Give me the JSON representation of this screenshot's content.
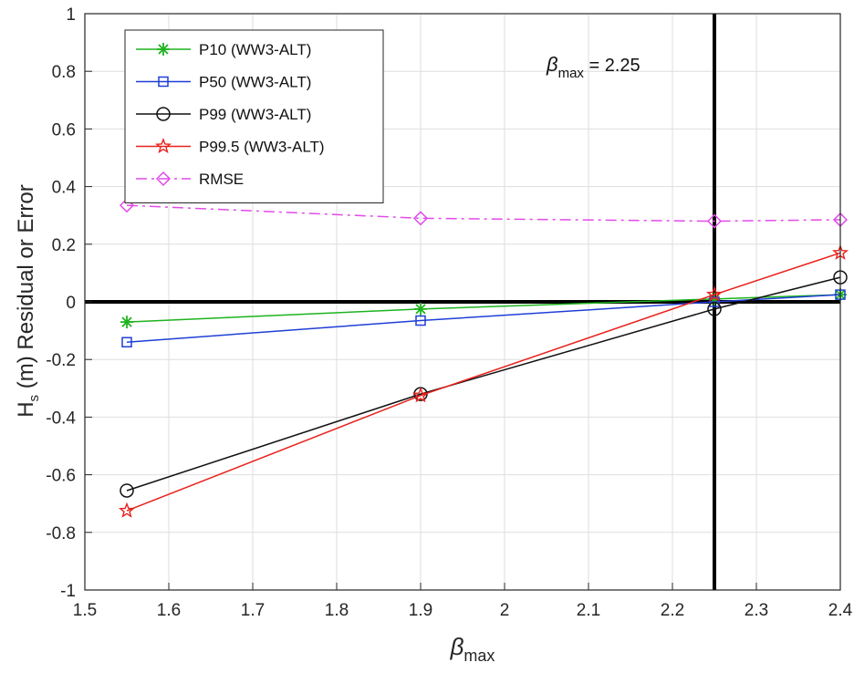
{
  "chart_data": {
    "type": "line",
    "title": "",
    "xlabel": "β",
    "xlabel_sub": "max",
    "ylabel_main": "H",
    "ylabel_sub": "s",
    "ylabel_rest": " (m) Residual or Error",
    "xlim": [
      1.5,
      2.4
    ],
    "ylim": [
      -1,
      1
    ],
    "xticks": [
      1.5,
      1.6,
      1.7,
      1.8,
      1.9,
      2,
      2.1,
      2.2,
      2.3,
      2.4
    ],
    "xtick_labels": [
      "1.5",
      "1.6",
      "1.7",
      "1.8",
      "1.9",
      "2",
      "2.1",
      "2.2",
      "2.3",
      "2.4"
    ],
    "yticks": [
      -1,
      -0.8,
      -0.6,
      -0.4,
      -0.2,
      0,
      0.2,
      0.4,
      0.6,
      0.8,
      1
    ],
    "ytick_labels": [
      "-1",
      "-0.8",
      "-0.6",
      "-0.4",
      "-0.2",
      "0",
      "0.2",
      "0.4",
      "0.6",
      "0.8",
      "1"
    ],
    "grid": true,
    "legend_position": "top-left",
    "x": [
      1.55,
      1.9,
      2.25,
      2.4
    ],
    "series": [
      {
        "name": "P10 (WW3-ALT)",
        "values": [
          -0.07,
          -0.025,
          0.01,
          0.025
        ],
        "color": "#1db31d",
        "marker": "asterisk",
        "dash": ""
      },
      {
        "name": "P50 (WW3-ALT)",
        "values": [
          -0.14,
          -0.065,
          0.0,
          0.025
        ],
        "color": "#1f3fd6",
        "marker": "square",
        "dash": ""
      },
      {
        "name": "P99 (WW3-ALT)",
        "values": [
          -0.655,
          -0.32,
          -0.025,
          0.085
        ],
        "color": "#111111",
        "marker": "circle",
        "dash": ""
      },
      {
        "name": "P99.5 (WW3-ALT)",
        "values": [
          -0.725,
          -0.325,
          0.025,
          0.17
        ],
        "color": "#e8211c",
        "marker": "star",
        "dash": ""
      },
      {
        "name": "RMSE",
        "values": [
          0.335,
          0.29,
          0.28,
          0.285
        ],
        "color": "#e14be8",
        "marker": "diamond",
        "dash": "12,5,3,5"
      }
    ],
    "reference_lines": {
      "vertical_x": 2.25,
      "horizontal_y": 0
    },
    "annotation": {
      "symbol": "β",
      "sub": "max",
      "text": " = 2.25",
      "x": 2.05,
      "y": 0.8
    }
  }
}
